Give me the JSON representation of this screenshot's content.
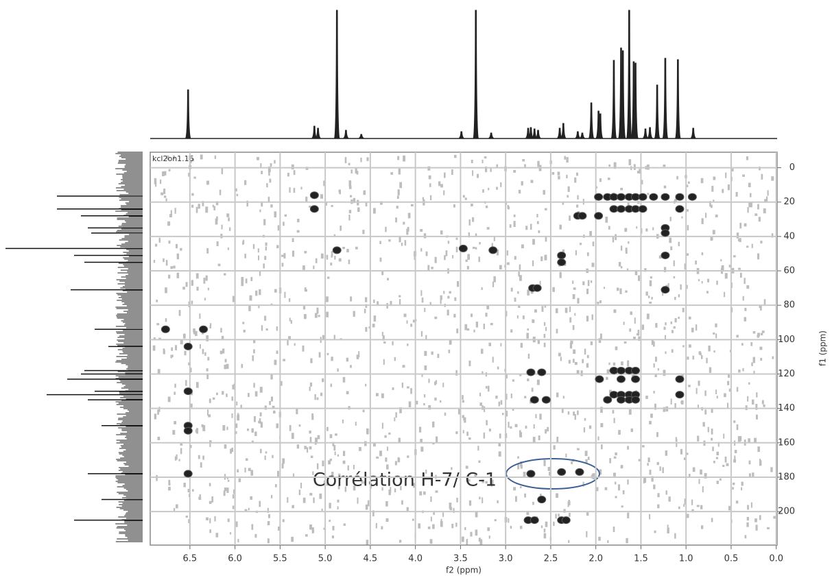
{
  "chart_data": {
    "type": "scatter",
    "dataset_label": "kcl2on1.16",
    "xlabel": "f2 (ppm)",
    "ylabel": "f1 (ppm)",
    "annotation": "Corrélation H-7/ C-1",
    "xlim": [
      6.94,
      -0.01
    ],
    "ylim": [
      -9,
      219.5
    ],
    "xticks": [
      6.5,
      {
        "value": 6,
        "label": "6.0"
      },
      5.5,
      {
        "value": 5,
        "label": "5.0"
      },
      4.5,
      {
        "value": 4,
        "label": "4.0"
      },
      3.5,
      {
        "value": 3,
        "label": "3.0"
      },
      2.5,
      {
        "value": 2,
        "label": "2.0"
      },
      1.5,
      {
        "value": 1,
        "label": "1.0"
      },
      0.5,
      {
        "value": 0,
        "label": "0.0"
      }
    ],
    "yticks": [
      0,
      20,
      40,
      60,
      80,
      100,
      120,
      140,
      160,
      180,
      200
    ],
    "grid": true,
    "color": "#222222",
    "x": [
      6.77,
      6.35,
      6.52,
      6.52,
      6.52,
      6.52,
      6.52,
      5.12,
      5.12,
      4.87,
      3.47,
      3.14,
      1.97,
      1.87,
      1.8,
      1.72,
      1.63,
      1.56,
      1.48,
      1.36,
      1.23,
      1.07,
      0.93,
      1.8,
      1.72,
      1.63,
      1.56,
      1.48,
      1.07,
      2.2,
      2.15,
      1.97,
      1.23,
      1.23,
      1.23,
      1.23,
      2.38,
      2.38,
      2.7,
      2.65,
      2.72,
      2.6,
      1.8,
      1.72,
      1.63,
      1.56,
      1.72,
      1.56,
      1.96,
      1.07,
      1.8,
      1.72,
      1.63,
      1.56,
      1.07,
      1.87,
      1.72,
      1.63,
      1.56,
      2.68,
      2.55,
      2.38,
      2.18,
      2.72,
      2.6,
      2.75,
      2.68,
      2.38,
      2.33
    ],
    "values": [
      94,
      94,
      104,
      130,
      150,
      153,
      178,
      16,
      24,
      48,
      47,
      48,
      17,
      17,
      17,
      17,
      17,
      17,
      17,
      17,
      17,
      17,
      17,
      24,
      24,
      24,
      24,
      24,
      24,
      28,
      28,
      28,
      35,
      38,
      51,
      71,
      51,
      55,
      70,
      70,
      119,
      119,
      118,
      118,
      118,
      118,
      123,
      123,
      123,
      123,
      132,
      132,
      132,
      132,
      132,
      135,
      135,
      135,
      135,
      135,
      135,
      177,
      177,
      178,
      193,
      205,
      205,
      205,
      205
    ],
    "proton_spectrum": {
      "x": [
        6.52,
        5.12,
        5.08,
        4.87,
        4.77,
        4.6,
        3.49,
        3.33,
        3.16,
        2.75,
        2.72,
        2.68,
        2.64,
        2.4,
        2.36,
        2.2,
        2.15,
        2.05,
        1.97,
        1.95,
        1.8,
        1.72,
        1.7,
        1.63,
        1.58,
        1.56,
        1.45,
        1.4,
        1.32,
        1.23,
        1.09,
        0.92
      ],
      "values": [
        71,
        18,
        15,
        187,
        12,
        6,
        10,
        187,
        8,
        15,
        16,
        14,
        12,
        15,
        22,
        10,
        8,
        52,
        40,
        36,
        114,
        132,
        128,
        187,
        112,
        110,
        14,
        16,
        78,
        117,
        115,
        15
      ],
      "ylim": [
        0,
        187
      ]
    },
    "carbon_spectrum": {
      "x": [
        16.5,
        24,
        28,
        35,
        38,
        47,
        51,
        55,
        71,
        94,
        104,
        118,
        120,
        123,
        130,
        132,
        135,
        150,
        178,
        193,
        205
      ],
      "values": [
        125,
        125,
        90,
        80,
        75,
        200,
        100,
        85,
        105,
        70,
        50,
        85,
        90,
        110,
        70,
        140,
        80,
        60,
        80,
        60,
        100
      ],
      "xlim": [
        0,
        200
      ]
    }
  }
}
